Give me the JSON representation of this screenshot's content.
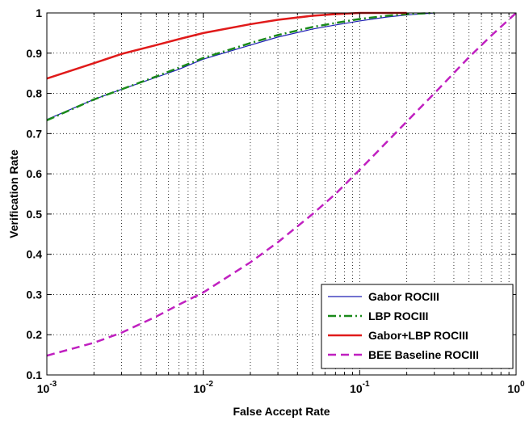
{
  "chart_data": {
    "type": "line",
    "title": "",
    "xlabel": "False Accept Rate",
    "ylabel": "Verification Rate",
    "xscale": "log",
    "xlim": [
      0.001,
      1
    ],
    "ylim": [
      0.1,
      1
    ],
    "grid": true,
    "legend_position": "bottom-right",
    "x_ticks": [
      {
        "value": 0.001,
        "base": "10",
        "exp": "-3"
      },
      {
        "value": 0.01,
        "base": "10",
        "exp": "-2"
      },
      {
        "value": 0.1,
        "base": "10",
        "exp": "-1"
      },
      {
        "value": 1,
        "base": "10",
        "exp": "0"
      }
    ],
    "y_ticks": [
      {
        "value": 0.1,
        "label": "0.1"
      },
      {
        "value": 0.2,
        "label": "0.2"
      },
      {
        "value": 0.3,
        "label": "0.3"
      },
      {
        "value": 0.4,
        "label": "0.4"
      },
      {
        "value": 0.5,
        "label": "0.5"
      },
      {
        "value": 0.6,
        "label": "0.6"
      },
      {
        "value": 0.7,
        "label": "0.7"
      },
      {
        "value": 0.8,
        "label": "0.8"
      },
      {
        "value": 0.9,
        "label": "0.9"
      },
      {
        "value": 1,
        "label": "1"
      }
    ],
    "series": [
      {
        "name": "Gabor ROCIII",
        "color": "#1f1fb4",
        "dash": "solid",
        "x": [
          0.001,
          0.002,
          0.003,
          0.005,
          0.007,
          0.01,
          0.02,
          0.03,
          0.05,
          0.07,
          0.1,
          0.15,
          0.2,
          0.3
        ],
        "y": [
          0.735,
          0.785,
          0.81,
          0.84,
          0.86,
          0.885,
          0.92,
          0.94,
          0.96,
          0.97,
          0.98,
          0.99,
          0.995,
          1.0
        ]
      },
      {
        "name": "LBP ROCIII",
        "color": "#1a8a1a",
        "dash": "dashdot",
        "x": [
          0.001,
          0.002,
          0.003,
          0.005,
          0.007,
          0.01,
          0.02,
          0.03,
          0.05,
          0.07,
          0.1,
          0.15,
          0.2,
          0.3
        ],
        "y": [
          0.733,
          0.785,
          0.81,
          0.842,
          0.864,
          0.888,
          0.925,
          0.945,
          0.965,
          0.975,
          0.985,
          0.993,
          0.997,
          1.0
        ]
      },
      {
        "name": "Gabor+LBP ROCIII",
        "color": "#e01a1a",
        "dash": "solid",
        "x": [
          0.001,
          0.002,
          0.003,
          0.005,
          0.007,
          0.01,
          0.02,
          0.03,
          0.05,
          0.07,
          0.1,
          0.15,
          0.2
        ],
        "y": [
          0.837,
          0.875,
          0.898,
          0.92,
          0.935,
          0.95,
          0.972,
          0.983,
          0.993,
          0.997,
          1.0,
          1.0,
          1.0
        ]
      },
      {
        "name": "BEE Baseline ROCIII",
        "color": "#c020c0",
        "dash": "dashed",
        "x": [
          0.001,
          0.002,
          0.003,
          0.005,
          0.007,
          0.01,
          0.02,
          0.03,
          0.05,
          0.07,
          0.1,
          0.2,
          0.3,
          0.5,
          0.7,
          1.0
        ],
        "y": [
          0.148,
          0.18,
          0.205,
          0.245,
          0.275,
          0.305,
          0.38,
          0.43,
          0.5,
          0.55,
          0.61,
          0.73,
          0.8,
          0.89,
          0.945,
          1.0
        ]
      }
    ]
  }
}
